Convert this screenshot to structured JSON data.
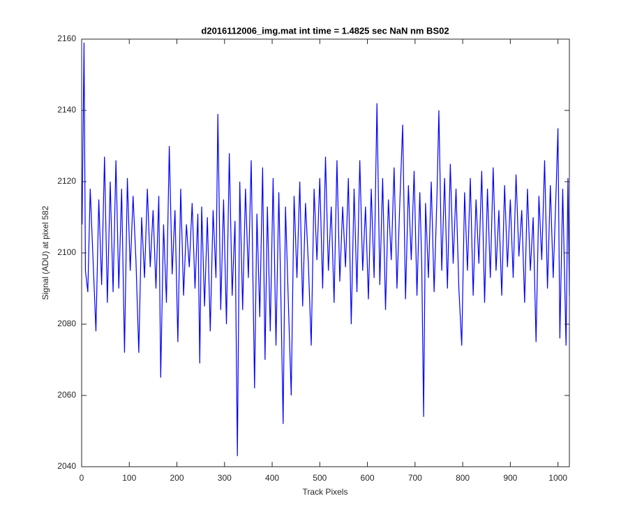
{
  "chart_data": {
    "type": "line",
    "title": "d2016112006_img.mat int time = 1.4825 sec  NaN nm BS02",
    "x_label": "Track Pixels",
    "y_label": "Signal (ADU) at pixel 582",
    "xlim": [
      0,
      1024
    ],
    "ylim": [
      2040,
      2160
    ],
    "xticks": [
      0,
      100,
      200,
      300,
      400,
      500,
      600,
      700,
      800,
      900,
      1000
    ],
    "yticks": [
      2040,
      2060,
      2080,
      2100,
      2120,
      2140,
      2160
    ],
    "series": [
      {
        "color": "#0000ff",
        "x": [
          1,
          5,
          8,
          13,
          18,
          24,
          30,
          36,
          42,
          48,
          54,
          60,
          66,
          72,
          78,
          84,
          90,
          96,
          102,
          108,
          114,
          120,
          126,
          132,
          138,
          144,
          150,
          156,
          162,
          166,
          172,
          178,
          184,
          190,
          196,
          202,
          208,
          214,
          220,
          226,
          232,
          238,
          244,
          248,
          252,
          258,
          264,
          270,
          276,
          282,
          286,
          292,
          298,
          304,
          310,
          316,
          322,
          327,
          332,
          338,
          344,
          350,
          356,
          363,
          368,
          374,
          380,
          385,
          390,
          396,
          402,
          408,
          414,
          418,
          423,
          428,
          434,
          440,
          446,
          452,
          458,
          464,
          470,
          476,
          482,
          488,
          494,
          500,
          506,
          512,
          518,
          524,
          530,
          536,
          542,
          548,
          554,
          560,
          566,
          572,
          578,
          584,
          590,
          596,
          602,
          608,
          614,
          620,
          626,
          632,
          638,
          644,
          650,
          656,
          662,
          668,
          674,
          680,
          686,
          692,
          698,
          704,
          710,
          714,
          718,
          722,
          728,
          734,
          740,
          746,
          750,
          756,
          762,
          768,
          774,
          780,
          786,
          792,
          798,
          804,
          810,
          816,
          822,
          828,
          834,
          840,
          846,
          852,
          858,
          864,
          870,
          876,
          882,
          888,
          894,
          900,
          906,
          912,
          918,
          924,
          930,
          936,
          942,
          948,
          954,
          960,
          966,
          972,
          978,
          984,
          990,
          996,
          1000,
          1004,
          1010,
          1017,
          1021,
          1024
        ],
        "values": [
          2108,
          2159,
          2095,
          2089,
          2118,
          2098,
          2078,
          2115,
          2091,
          2127,
          2086,
          2120,
          2089,
          2126,
          2090,
          2118,
          2072,
          2121,
          2095,
          2116,
          2098,
          2072,
          2110,
          2093,
          2118,
          2096,
          2112,
          2090,
          2116,
          2065,
          2108,
          2086,
          2130,
          2094,
          2112,
          2075,
          2118,
          2088,
          2108,
          2096,
          2114,
          2090,
          2111,
          2069,
          2113,
          2085,
          2110,
          2078,
          2112,
          2093,
          2139,
          2084,
          2115,
          2080,
          2128,
          2088,
          2109,
          2043,
          2120,
          2084,
          2118,
          2093,
          2126,
          2062,
          2111,
          2082,
          2124,
          2070,
          2113,
          2078,
          2121,
          2074,
          2117,
          2090,
          2052,
          2113,
          2086,
          2060,
          2116,
          2093,
          2120,
          2085,
          2114,
          2097,
          2074,
          2118,
          2098,
          2121,
          2090,
          2127,
          2095,
          2113,
          2086,
          2126,
          2092,
          2113,
          2096,
          2121,
          2080,
          2118,
          2089,
          2126,
          2095,
          2113,
          2087,
          2118,
          2093,
          2142,
          2091,
          2121,
          2084,
          2115,
          2098,
          2124,
          2090,
          2114,
          2136,
          2087,
          2119,
          2098,
          2123,
          2088,
          2117,
          2097,
          2054,
          2114,
          2093,
          2120,
          2089,
          2116,
          2140,
          2095,
          2121,
          2090,
          2125,
          2097,
          2118,
          2090,
          2074,
          2117,
          2095,
          2121,
          2088,
          2115,
          2097,
          2123,
          2086,
          2118,
          2093,
          2124,
          2095,
          2112,
          2088,
          2119,
          2096,
          2115,
          2093,
          2122,
          2099,
          2112,
          2086,
          2118,
          2095,
          2110,
          2075,
          2116,
          2098,
          2126,
          2090,
          2119,
          2093,
          2117,
          2135,
          2076,
          2118,
          2074,
          2121,
          2088
        ]
      }
    ]
  }
}
